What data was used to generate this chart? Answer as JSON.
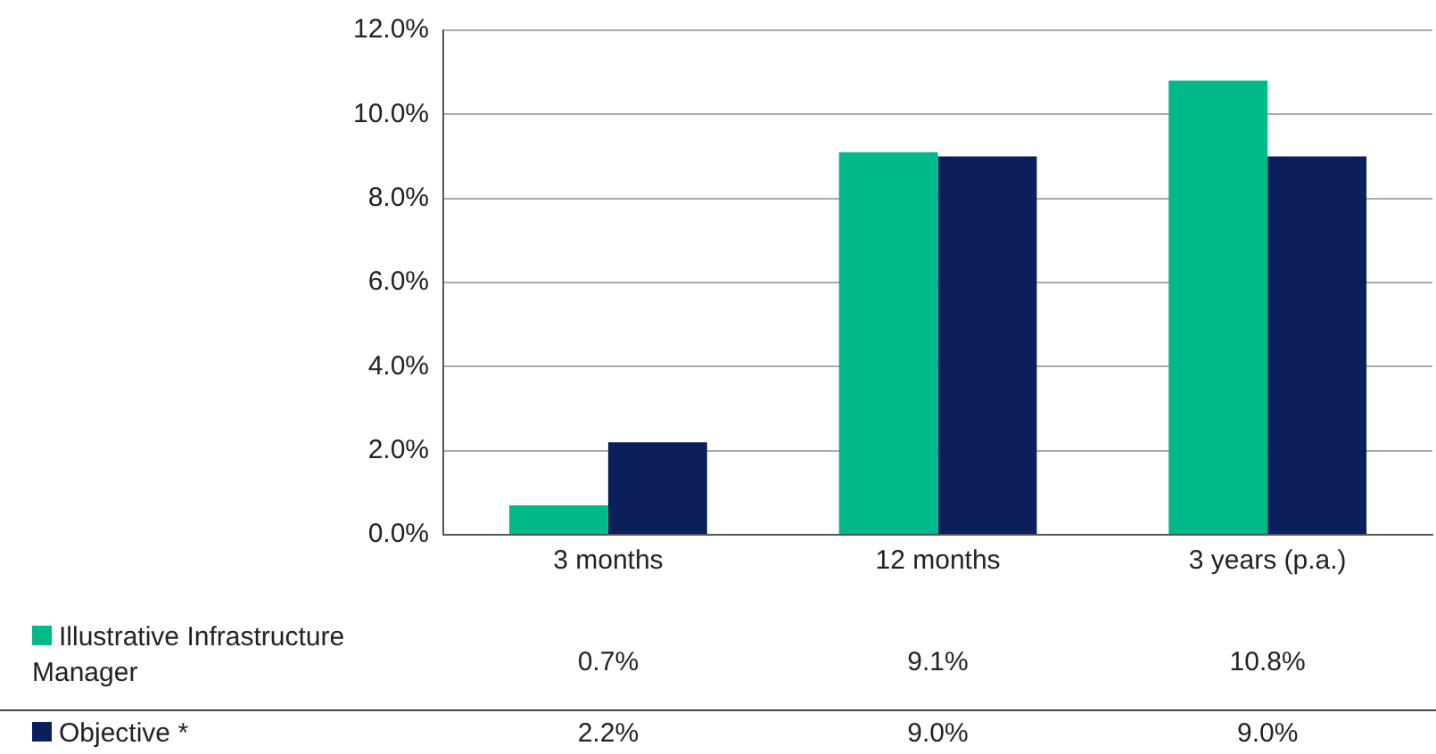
{
  "chart_data": {
    "type": "bar",
    "categories": [
      "3 months",
      "12 months",
      "3 years (p.a.)"
    ],
    "series": [
      {
        "name": "Illustrative Infrastructure Manager",
        "color": "#00b98a",
        "values": [
          0.7,
          9.1,
          10.8
        ],
        "value_labels": [
          "0.7%",
          "9.1%",
          "10.8%"
        ]
      },
      {
        "name": "Objective *",
        "color": "#0b1f5c",
        "values": [
          2.2,
          9.0,
          9.0
        ],
        "value_labels": [
          "2.2%",
          "9.0%",
          "9.0%"
        ]
      }
    ],
    "ylim": [
      0,
      12
    ],
    "yticks": [
      {
        "value": 0,
        "label": "0.0%"
      },
      {
        "value": 2,
        "label": "2.0%"
      },
      {
        "value": 4,
        "label": "4.0%"
      },
      {
        "value": 6,
        "label": "6.0%"
      },
      {
        "value": 8,
        "label": "8.0%"
      },
      {
        "value": 10,
        "label": "10.0%"
      },
      {
        "value": 12,
        "label": "12.0%"
      }
    ],
    "grid": "y",
    "legend": "bottom left"
  }
}
